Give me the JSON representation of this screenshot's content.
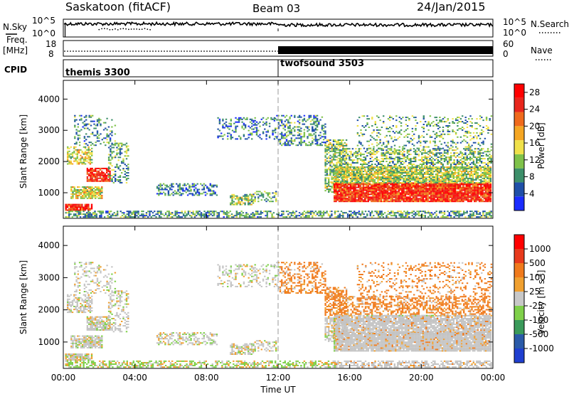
{
  "header": {
    "station": "Saskatoon (fitACF)",
    "beam": "Beam 03",
    "date": "24/Jan/2015"
  },
  "left_labels": {
    "nsky": "N.Sky",
    "freq_line1": "Freq.",
    "freq_line2": "[MHz]",
    "cpid": "CPID"
  },
  "right_labels": {
    "nsearch": "N.Search",
    "nave": "Nave"
  },
  "strip_ticks": {
    "noise_left": [
      "10^5",
      "10^0"
    ],
    "noise_right": [
      "10^5",
      "10^0"
    ],
    "freq_left": [
      "18",
      "8"
    ],
    "freq_right": [
      "60",
      "0"
    ]
  },
  "cpid_labels": [
    "themis 3300",
    "twofsound 3503"
  ],
  "colors": {
    "power_scale": [
      "#1a2cff",
      "#1f4fa8",
      "#3d8f6a",
      "#7fc24a",
      "#f0e14a",
      "#f5a623",
      "#f06a1c",
      "#e8261c",
      "#ff0000"
    ],
    "velocity_scale": [
      "#1f3fd0",
      "#2a5aa8",
      "#3a9a5a",
      "#7fd04a",
      "#c8c8c8",
      "#f0a030",
      "#f07a1c",
      "#e83a1c",
      "#ff0000"
    ],
    "ground_scatter": "#c4c4c4"
  },
  "chart_data": [
    {
      "type": "heatmap",
      "title": "",
      "xlabel": "Time UT",
      "ylabel": "Slant Range [km]",
      "x_ticks": [
        "00:00",
        "04:00",
        "08:00",
        "12:00",
        "16:00",
        "20:00",
        "00:00"
      ],
      "x_range_hours": [
        0,
        24
      ],
      "y_ticks": [
        "1000",
        "2000",
        "3000",
        "4000"
      ],
      "ylim": [
        180,
        4600
      ],
      "colorbar_label": "Power [dB]",
      "colorbar_ticks": [
        "4",
        "8",
        "12",
        "16",
        "20",
        "24",
        "28"
      ],
      "colorbar_range": [
        0,
        30
      ],
      "mode_change_hour": 12
    },
    {
      "type": "heatmap",
      "title": "",
      "xlabel": "Time UT",
      "ylabel": "Slant Range [km]",
      "x_ticks": [
        "00:00",
        "04:00",
        "08:00",
        "12:00",
        "16:00",
        "20:00",
        "00:00"
      ],
      "x_range_hours": [
        0,
        24
      ],
      "y_ticks": [
        "1000",
        "2000",
        "3000",
        "4000"
      ],
      "ylim": [
        180,
        4600
      ],
      "colorbar_label": "Velocity [m s^-1]",
      "colorbar_ticks": [
        "1000",
        "500",
        "100",
        "25",
        "-25",
        "-100",
        "-500",
        "-1000"
      ],
      "mode_change_hour": 12
    }
  ]
}
